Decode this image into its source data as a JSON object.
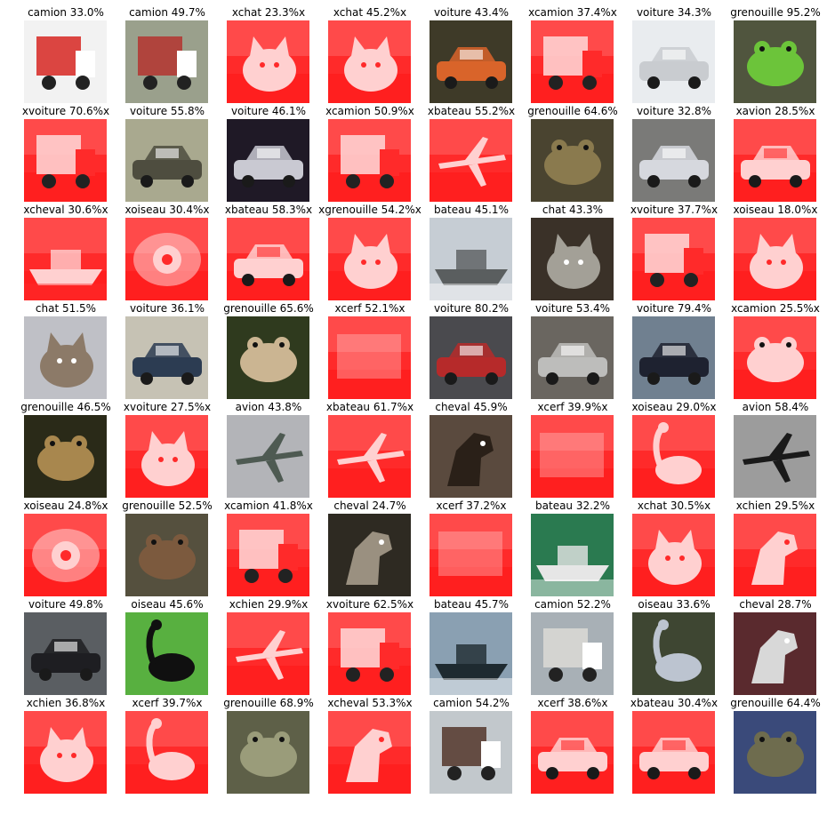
{
  "colors": {
    "wrong_tint": "#ff2a2a",
    "wrong_tint_light": "#ffd0d0"
  },
  "rows": [
    [
      {
        "label": "camion 33.0%",
        "wrong": false,
        "bg": "#f2f2f2",
        "fg": "#d8322e",
        "kind": "truck"
      },
      {
        "label": "camion 49.7%",
        "wrong": false,
        "bg": "#9aa08c",
        "fg": "#b23a34",
        "kind": "truck"
      },
      {
        "label": "xchat 23.3%x",
        "wrong": true,
        "kind": "cat"
      },
      {
        "label": "xchat 45.2%x",
        "wrong": true,
        "kind": "cat"
      },
      {
        "label": "voiture 43.4%",
        "wrong": false,
        "bg": "#3e3a28",
        "fg": "#d9642a",
        "kind": "car"
      },
      {
        "label": "xcamion 37.4%x",
        "wrong": true,
        "kind": "truck"
      },
      {
        "label": "voiture 34.3%",
        "wrong": false,
        "bg": "#e9ecef",
        "fg": "#c9ccd0",
        "kind": "car"
      },
      {
        "label": "grenouille 95.2%",
        "wrong": false,
        "bg": "#50553e",
        "fg": "#6cc43a",
        "kind": "frog"
      }
    ],
    [
      {
        "label": "xvoiture 70.6%x",
        "wrong": true,
        "kind": "truck"
      },
      {
        "label": "voiture 55.8%",
        "wrong": false,
        "bg": "#a9a98f",
        "fg": "#4e4d3f",
        "kind": "car"
      },
      {
        "label": "voiture 46.1%",
        "wrong": false,
        "bg": "#1f1926",
        "fg": "#c9c9d2",
        "kind": "car"
      },
      {
        "label": "xcamion 50.9%x",
        "wrong": true,
        "kind": "truck"
      },
      {
        "label": "xbateau 55.2%x",
        "wrong": true,
        "kind": "plane"
      },
      {
        "label": "grenouille 64.6%",
        "wrong": false,
        "bg": "#4a4430",
        "fg": "#8a7a4e",
        "kind": "frog"
      },
      {
        "label": "voiture 32.8%",
        "wrong": false,
        "bg": "#7a7a78",
        "fg": "#d6d8de",
        "kind": "car"
      },
      {
        "label": "xavion 28.5%x",
        "wrong": true,
        "kind": "car"
      }
    ],
    [
      {
        "label": "xcheval 30.6%x",
        "wrong": true,
        "kind": "ship"
      },
      {
        "label": "xoiseau 30.4%x",
        "wrong": true,
        "kind": "eye"
      },
      {
        "label": "xbateau 58.3%x",
        "wrong": true,
        "kind": "car"
      },
      {
        "label": "xgrenouille 54.2%x",
        "wrong": true,
        "kind": "cat"
      },
      {
        "label": "bateau 45.1%",
        "wrong": false,
        "bg": "#c6cdd4",
        "fg": "#5a5e5f",
        "kind": "ship"
      },
      {
        "label": "chat 43.3%",
        "wrong": false,
        "bg": "#3a3128",
        "fg": "#a3a097",
        "kind": "cat"
      },
      {
        "label": "xvoiture 37.7%x",
        "wrong": true,
        "kind": "truck"
      },
      {
        "label": "xoiseau 18.0%x",
        "wrong": true,
        "kind": "cat"
      }
    ],
    [
      {
        "label": "chat 51.5%",
        "wrong": false,
        "bg": "#bfc0c6",
        "fg": "#8c7a68",
        "kind": "cat"
      },
      {
        "label": "voiture 36.1%",
        "wrong": false,
        "bg": "#c6c2b4",
        "fg": "#2c3c52",
        "kind": "car"
      },
      {
        "label": "grenouille 65.6%",
        "wrong": false,
        "bg": "#2f3a1e",
        "fg": "#cbb592",
        "kind": "frog"
      },
      {
        "label": "xcerf 52.1%x",
        "wrong": true,
        "kind": "blank"
      },
      {
        "label": "voiture 80.2%",
        "wrong": false,
        "bg": "#4a4a4e",
        "fg": "#b62a2a",
        "kind": "car"
      },
      {
        "label": "voiture 53.4%",
        "wrong": false,
        "bg": "#6a6660",
        "fg": "#bdbdbb",
        "kind": "car"
      },
      {
        "label": "voiture 79.4%",
        "wrong": false,
        "bg": "#708090",
        "fg": "#1e2230",
        "kind": "car"
      },
      {
        "label": "xcamion 25.5%x",
        "wrong": true,
        "kind": "frog"
      }
    ],
    [
      {
        "label": "grenouille 46.5%",
        "wrong": false,
        "bg": "#2a2a18",
        "fg": "#a8874e",
        "kind": "frog"
      },
      {
        "label": "xvoiture 27.5%x",
        "wrong": true,
        "kind": "cat"
      },
      {
        "label": "avion 43.8%",
        "wrong": false,
        "bg": "#b3b4b8",
        "fg": "#4e5a52",
        "kind": "plane"
      },
      {
        "label": "xbateau 61.7%x",
        "wrong": true,
        "kind": "plane"
      },
      {
        "label": "cheval 45.9%",
        "wrong": false,
        "bg": "#5a4a3e",
        "fg": "#2a2018",
        "kind": "horse"
      },
      {
        "label": "xcerf 39.9%x",
        "wrong": true,
        "kind": "blank"
      },
      {
        "label": "xoiseau 29.0%x",
        "wrong": true,
        "kind": "bird"
      },
      {
        "label": "avion 58.4%",
        "wrong": false,
        "bg": "#9c9c9c",
        "fg": "#1a1a1a",
        "kind": "plane"
      }
    ],
    [
      {
        "label": "xoiseau 24.8%x",
        "wrong": true,
        "kind": "eye"
      },
      {
        "label": "grenouille 52.5%",
        "wrong": false,
        "bg": "#55503e",
        "fg": "#7c5a3e",
        "kind": "frog"
      },
      {
        "label": "xcamion 41.8%x",
        "wrong": true,
        "kind": "truck"
      },
      {
        "label": "cheval 24.7%",
        "wrong": false,
        "bg": "#2e2a22",
        "fg": "#9a9080",
        "kind": "horse"
      },
      {
        "label": "xcerf 37.2%x",
        "wrong": true,
        "kind": "blank"
      },
      {
        "label": "bateau 32.2%",
        "wrong": false,
        "bg": "#2a7a50",
        "fg": "#e6e6e6",
        "kind": "ship"
      },
      {
        "label": "xchat 30.5%x",
        "wrong": true,
        "kind": "cat"
      },
      {
        "label": "xchien 29.5%x",
        "wrong": true,
        "kind": "horse"
      }
    ],
    [
      {
        "label": "voiture 49.8%",
        "wrong": false,
        "bg": "#5a5e62",
        "fg": "#1e1e22",
        "kind": "car"
      },
      {
        "label": "oiseau 45.6%",
        "wrong": false,
        "bg": "#58b040",
        "fg": "#101010",
        "kind": "bird"
      },
      {
        "label": "xchien 29.9%x",
        "wrong": true,
        "kind": "plane"
      },
      {
        "label": "xvoiture 62.5%x",
        "wrong": true,
        "kind": "truck"
      },
      {
        "label": "bateau 45.7%",
        "wrong": false,
        "bg": "#8aa0b2",
        "fg": "#1e2a30",
        "kind": "ship"
      },
      {
        "label": "camion 52.2%",
        "wrong": false,
        "bg": "#a8b0b6",
        "fg": "#d8d8d4",
        "kind": "truck"
      },
      {
        "label": "oiseau 33.6%",
        "wrong": false,
        "bg": "#3e4632",
        "fg": "#bcc4d0",
        "kind": "bird"
      },
      {
        "label": "cheval 28.7%",
        "wrong": false,
        "bg": "#5a2a2e",
        "fg": "#d8d8d8",
        "kind": "horse"
      }
    ],
    [
      {
        "label": "xchien 36.8%x",
        "wrong": true,
        "kind": "cat"
      },
      {
        "label": "xcerf 39.7%x",
        "wrong": true,
        "kind": "bird"
      },
      {
        "label": "grenouille 68.9%",
        "wrong": false,
        "bg": "#5e6048",
        "fg": "#9a9c7a",
        "kind": "frog"
      },
      {
        "label": "xcheval 53.3%x",
        "wrong": true,
        "kind": "horse"
      },
      {
        "label": "camion 54.2%",
        "wrong": false,
        "bg": "#c2c8cc",
        "fg": "#5a3e34",
        "kind": "truck"
      },
      {
        "label": "xcerf 38.6%x",
        "wrong": true,
        "kind": "car"
      },
      {
        "label": "xbateau 30.4%x",
        "wrong": true,
        "kind": "car"
      },
      {
        "label": "grenouille 64.4%",
        "wrong": false,
        "bg": "#3a4a7a",
        "fg": "#6e6c4e",
        "kind": "frog"
      }
    ]
  ]
}
